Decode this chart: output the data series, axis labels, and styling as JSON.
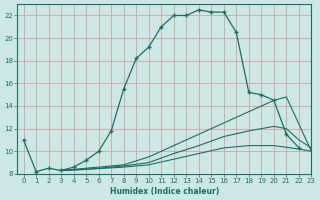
{
  "xlabel": "Humidex (Indice chaleur)",
  "bg_color": "#cce8e4",
  "line_color": "#1a6e63",
  "grid_color": "#d4a0a0",
  "xlim": [
    -0.5,
    23
  ],
  "ylim": [
    8,
    23
  ],
  "yticks": [
    8,
    10,
    12,
    14,
    16,
    18,
    20,
    22
  ],
  "xticks": [
    0,
    1,
    2,
    3,
    4,
    5,
    6,
    7,
    8,
    9,
    10,
    11,
    12,
    13,
    14,
    15,
    16,
    17,
    18,
    19,
    20,
    21,
    22,
    23
  ],
  "main_x": [
    0,
    1,
    2,
    3,
    4,
    5,
    6,
    7,
    8,
    9,
    10,
    11,
    12,
    13,
    14,
    15,
    16,
    17,
    18,
    19,
    20,
    21,
    22
  ],
  "main_y": [
    11.0,
    8.2,
    8.5,
    8.3,
    8.6,
    9.2,
    10.0,
    11.8,
    15.5,
    18.2,
    19.2,
    21.0,
    22.0,
    22.0,
    22.5,
    22.3,
    22.3,
    20.5,
    15.2,
    15.0,
    14.5,
    11.5,
    10.3
  ],
  "line2_x": [
    3,
    5,
    8,
    10,
    12,
    14,
    16,
    18,
    19,
    20,
    21,
    23
  ],
  "line2_y": [
    8.3,
    8.5,
    8.8,
    9.5,
    10.5,
    11.5,
    12.5,
    13.5,
    14.0,
    14.5,
    14.8,
    10.0
  ],
  "line3_x": [
    3,
    5,
    8,
    10,
    12,
    14,
    16,
    18,
    20,
    21,
    22,
    23
  ],
  "line3_y": [
    8.3,
    8.4,
    8.7,
    9.0,
    9.8,
    10.5,
    11.3,
    11.8,
    12.2,
    12.0,
    11.0,
    10.3
  ],
  "line4_x": [
    3,
    5,
    8,
    10,
    12,
    14,
    16,
    18,
    20,
    22,
    23
  ],
  "line4_y": [
    8.3,
    8.4,
    8.6,
    8.8,
    9.3,
    9.8,
    10.3,
    10.5,
    10.5,
    10.2,
    10.0
  ]
}
